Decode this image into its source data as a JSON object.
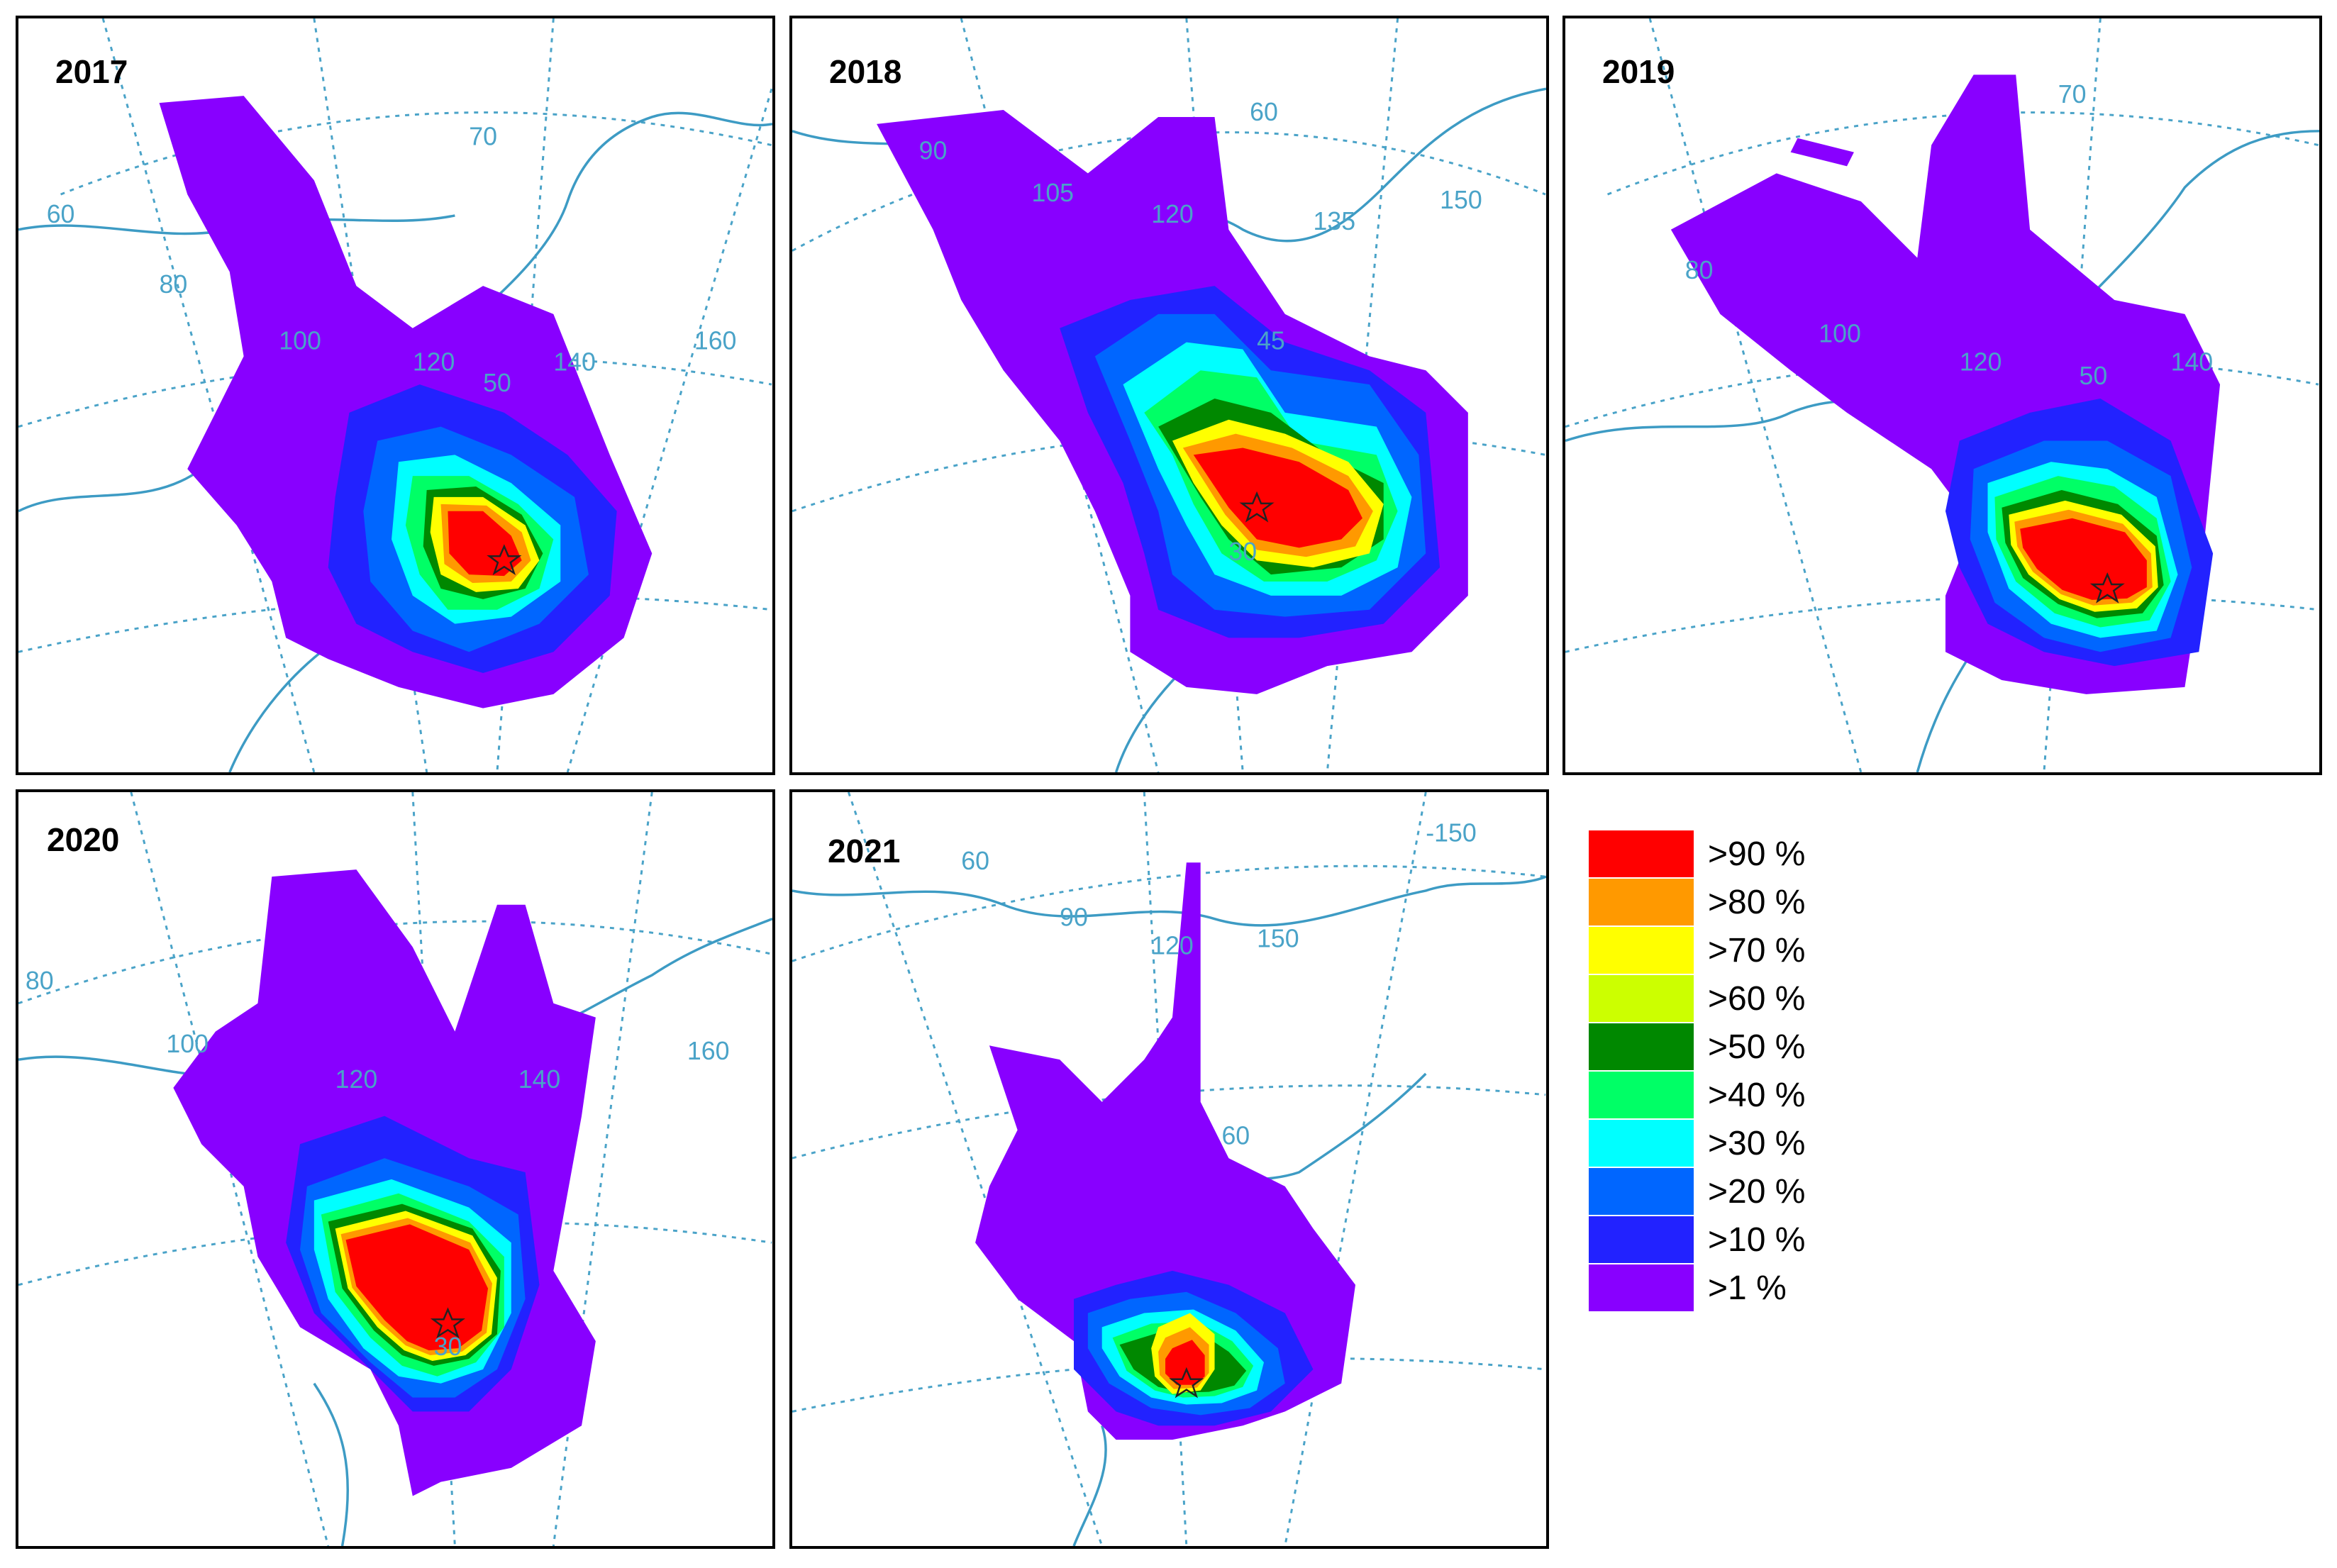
{
  "panels": [
    {
      "year": "2017",
      "grid_labels": [
        "70",
        "60",
        "80",
        "100",
        "120",
        "160",
        "140",
        "50"
      ],
      "coverage_levels_percent": [
        1,
        10,
        20,
        30,
        40,
        50,
        60,
        70,
        80,
        90
      ],
      "source_marker": "star"
    },
    {
      "year": "2018",
      "grid_labels": [
        "60",
        "90",
        "105",
        "120",
        "135",
        "150",
        "45",
        "30"
      ],
      "coverage_levels_percent": [
        1,
        10,
        20,
        30,
        40,
        50,
        60,
        70,
        80,
        90
      ],
      "source_marker": "star"
    },
    {
      "year": "2019",
      "grid_labels": [
        "70",
        "80",
        "100",
        "120",
        "140",
        "50"
      ],
      "coverage_levels_percent": [
        1,
        10,
        20,
        30,
        40,
        50,
        60,
        70,
        80,
        90
      ],
      "source_marker": "star"
    },
    {
      "year": "2020",
      "grid_labels": [
        "80",
        "100",
        "120",
        "140",
        "160",
        "30"
      ],
      "coverage_levels_percent": [
        1,
        10,
        20,
        30,
        40,
        50,
        60,
        70,
        80,
        90
      ],
      "source_marker": "star"
    },
    {
      "year": "2021",
      "grid_labels": [
        "60",
        "90",
        "120",
        "150",
        "-150",
        "60"
      ],
      "coverage_levels_percent": [
        1,
        10,
        20,
        30,
        40,
        50,
        60,
        70,
        80,
        90
      ],
      "source_marker": "star"
    }
  ],
  "legend": {
    "items": [
      {
        "label": ">90 %",
        "color": "#ff0000"
      },
      {
        "label": ">80 %",
        "color": "#ff9900"
      },
      {
        "label": ">70 %",
        "color": "#ffff00"
      },
      {
        "label": ">60 %",
        "color": "#ccff00"
      },
      {
        "label": ">50 %",
        "color": "#008800"
      },
      {
        "label": ">40 %",
        "color": "#00ff66"
      },
      {
        "label": ">30 %",
        "color": "#00ffff"
      },
      {
        "label": ">20 %",
        "color": "#0066ff"
      },
      {
        "label": ">10 %",
        "color": "#2222ff"
      },
      {
        "label": ">1 %",
        "color": "#8800ff"
      }
    ]
  }
}
